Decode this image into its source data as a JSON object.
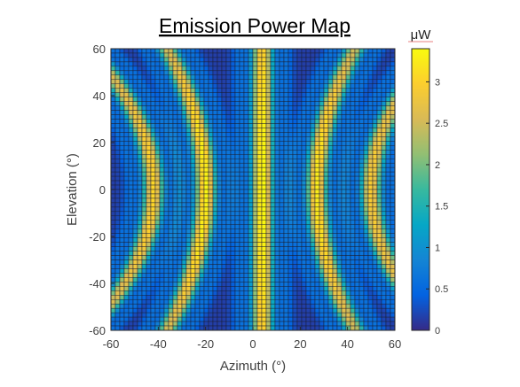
{
  "chart_data": {
    "type": "heatmap",
    "title": "Emission Power Map",
    "xlabel": "Azimuth (°)",
    "ylabel": "Elevation (°)",
    "xlim": [
      -60,
      60
    ],
    "ylim": [
      -60,
      60
    ],
    "xticks": [
      -60,
      -40,
      -20,
      0,
      20,
      40,
      60
    ],
    "yticks": [
      60,
      40,
      20,
      0,
      -20,
      -40,
      -60
    ],
    "grid": {
      "cols": 64,
      "rows": 64
    },
    "colormap": "parula",
    "colorbar": {
      "unit": "μW",
      "range": [
        0,
        3.4
      ],
      "ticks": [
        0,
        0.5,
        1,
        1.5,
        2,
        2.5,
        3
      ]
    },
    "fringes": [
      {
        "type": "vertical",
        "center_azimuth": 4,
        "peak_power": 3.3
      },
      {
        "type": "arc",
        "vertex_azimuth": -20,
        "peak_power": 3.2
      },
      {
        "type": "arc",
        "vertex_azimuth": 27,
        "peak_power": 3.1
      },
      {
        "type": "arc",
        "vertex_azimuth": -42,
        "peak_power": 2.9
      },
      {
        "type": "arc",
        "vertex_azimuth": 50,
        "peak_power": 2.8
      }
    ]
  }
}
